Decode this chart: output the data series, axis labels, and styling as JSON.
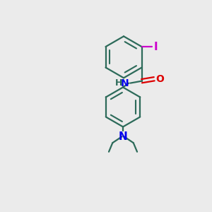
{
  "background_color": "#ebebeb",
  "bond_color": "#2d6b5a",
  "bond_width": 1.6,
  "iodine_color": "#cc00cc",
  "iodine_label": "I",
  "oxygen_color": "#dd0000",
  "oxygen_label": "O",
  "nitrogen_color": "#0000ee",
  "nitrogen_label": "N",
  "nh_label": "H",
  "nh_color": "#2d6b5a",
  "font_size_atom": 10,
  "figsize": [
    3.0,
    3.0
  ],
  "dpi": 100
}
